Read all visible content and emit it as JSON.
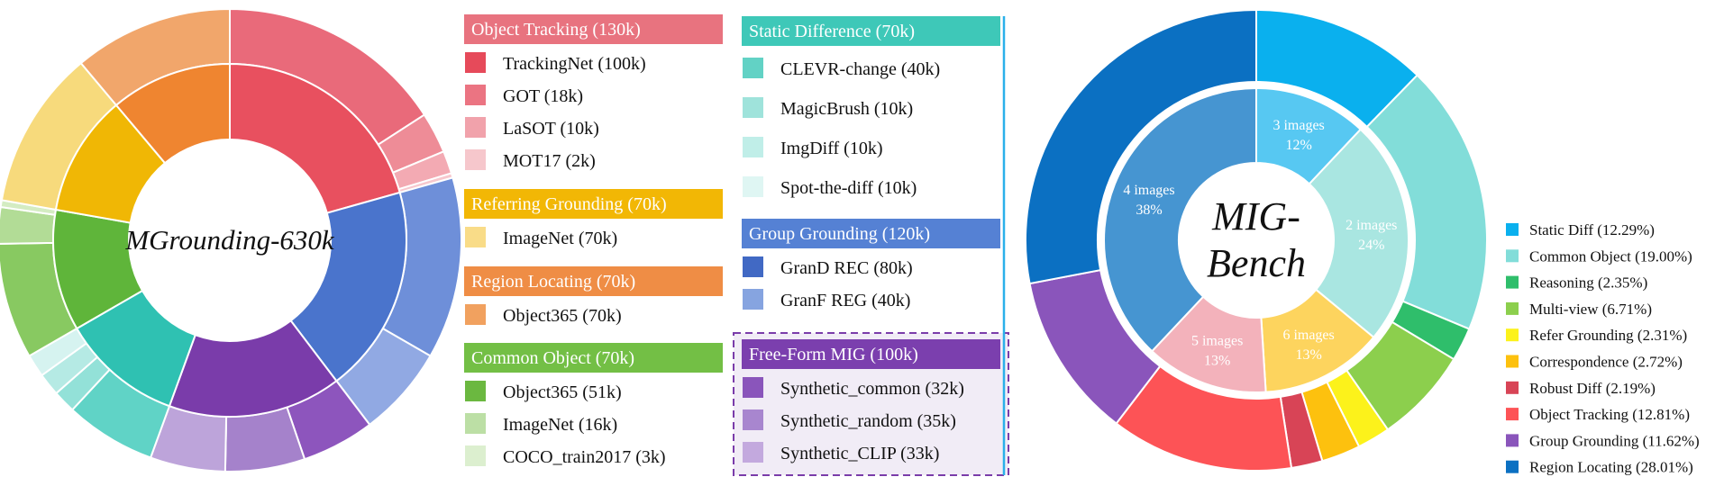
{
  "chart_data": [
    {
      "type": "pie",
      "title": "MGrounding-630k",
      "inner_ring": [
        {
          "label": "Object Tracking",
          "value": 130,
          "color": "#e8505f"
        },
        {
          "label": "Group Grounding",
          "value": 120,
          "color": "#4a74cc"
        },
        {
          "label": "Free-Form MIG",
          "value": 100,
          "color": "#7a3caa"
        },
        {
          "label": "Static Difference",
          "value": 70,
          "color": "#2fc1b2"
        },
        {
          "label": "Common Object",
          "value": 70,
          "color": "#5fb53a"
        },
        {
          "label": "Referring Grounding",
          "value": 70,
          "color": "#f0b705"
        },
        {
          "label": "Region Locating",
          "value": 70,
          "color": "#ef8530"
        }
      ],
      "outer_ring": [
        {
          "label": "TrackingNet",
          "value": 100,
          "color": "#e96a7a"
        },
        {
          "label": "GOT",
          "value": 18,
          "color": "#ee8c97"
        },
        {
          "label": "LaSOT",
          "value": 10,
          "color": "#f3aab3"
        },
        {
          "label": "MOT17",
          "value": 2,
          "color": "#f7c7cd"
        },
        {
          "label": "GranD REC",
          "value": 80,
          "color": "#6e8fd9"
        },
        {
          "label": "GranF REG",
          "value": 40,
          "color": "#91a9e3"
        },
        {
          "label": "Synthetic_common",
          "value": 32,
          "color": "#8d55bd"
        },
        {
          "label": "Synthetic_random",
          "value": 35,
          "color": "#a582cb"
        },
        {
          "label": "Synthetic_CLIP",
          "value": 33,
          "color": "#bda4da"
        },
        {
          "label": "CLEVR-change",
          "value": 40,
          "color": "#60d3c6"
        },
        {
          "label": "MagicBrush",
          "value": 10,
          "color": "#93e1d8"
        },
        {
          "label": "ImgDiff",
          "value": 10,
          "color": "#b5eae4"
        },
        {
          "label": "Spot-the-diff",
          "value": 10,
          "color": "#d6f3f0"
        },
        {
          "label": "Object365",
          "value": 51,
          "color": "#88c961"
        },
        {
          "label": "ImageNet",
          "value": 16,
          "color": "#b2dc96"
        },
        {
          "label": "COCO_train2017",
          "value": 3,
          "color": "#d4ecc2"
        },
        {
          "label": "ImageNet",
          "value": 70,
          "color": "#f7da7c"
        },
        {
          "label": "Object365",
          "value": 70,
          "color": "#f1a66b"
        }
      ],
      "legend": [
        {
          "header": "Object Tracking (130k)",
          "header_color": "#e8737f",
          "items": [
            {
              "label": "TrackingNet (100k)",
              "color": "#e64a5a"
            },
            {
              "label": "GOT (18k)",
              "color": "#eb7482"
            },
            {
              "label": "LaSOT (10k)",
              "color": "#f1a2ab"
            },
            {
              "label": "MOT17 (2k)",
              "color": "#f6c7cc"
            }
          ]
        },
        {
          "header": "Referring Grounding (70k)",
          "header_color": "#f2b705",
          "items": [
            {
              "label": "ImageNet (70k)",
              "color": "#f9dc88"
            }
          ]
        },
        {
          "header": "Region Locating (70k)",
          "header_color": "#ef8d45",
          "items": [
            {
              "label": "Object365 (70k)",
              "color": "#f1a15f"
            }
          ]
        },
        {
          "header": "Common Object (70k)",
          "header_color": "#73bf45",
          "items": [
            {
              "label": "Object365 (51k)",
              "color": "#6bb840"
            },
            {
              "label": "ImageNet (16k)",
              "color": "#bcdfa5"
            },
            {
              "label": "COCO_train2017 (3k)",
              "color": "#dcefcf"
            }
          ]
        },
        {
          "header": "Static Difference (70k)",
          "header_color": "#3ec8b8",
          "items": [
            {
              "label": "CLEVR-change (40k)",
              "color": "#62d2c5"
            },
            {
              "label": "MagicBrush (10k)",
              "color": "#9fe3db"
            },
            {
              "label": "ImgDiff (10k)",
              "color": "#c0eee8"
            },
            {
              "label": "Spot-the-diff (10k)",
              "color": "#dff6f3"
            }
          ]
        },
        {
          "header": "Group Grounding (120k)",
          "header_color": "#5581d4",
          "items": [
            {
              "label": "GranD REC (80k)",
              "color": "#4169c4"
            },
            {
              "label": "GranF REG (40k)",
              "color": "#86a4e0"
            }
          ]
        },
        {
          "header": "Free-Form MIG (100k)",
          "header_color": "#7b3fae",
          "items": [
            {
              "label": "Synthetic_common (32k)",
              "color": "#8a55bb"
            },
            {
              "label": "Synthetic_random (35k)",
              "color": "#a886cf"
            },
            {
              "label": "Synthetic_CLIP (33k)",
              "color": "#c3a9de"
            }
          ]
        }
      ]
    },
    {
      "type": "pie",
      "title": "MIG-Bench",
      "title_lines": [
        "MIG-",
        "Bench"
      ],
      "inner_ring": [
        {
          "label": "3 images",
          "percent": "12%",
          "value": 12,
          "color": "#57c8f2"
        },
        {
          "label": "2 images",
          "percent": "24%",
          "value": 24,
          "color": "#a9e6e1"
        },
        {
          "label": "6 images",
          "percent": "13%",
          "value": 13,
          "color": "#fdd45e"
        },
        {
          "label": "5 images",
          "percent": "13%",
          "value": 13,
          "color": "#f3b2bb"
        },
        {
          "label": "4 images",
          "percent": "38%",
          "value": 38,
          "color": "#4695d1"
        }
      ],
      "outer_ring": [
        {
          "label": "Static Diff (12.29%)",
          "value": 12.29,
          "color": "#0ab0ee"
        },
        {
          "label": "Common Object (19.00%)",
          "value": 19.0,
          "color": "#82ddd9"
        },
        {
          "label": "Reasoning (2.35%)",
          "value": 2.35,
          "color": "#2fbe6b"
        },
        {
          "label": "Multi-view (6.71%)",
          "value": 6.71,
          "color": "#8ccf4d"
        },
        {
          "label": "Refer Grounding (2.31%)",
          "value": 2.31,
          "color": "#fcf21b"
        },
        {
          "label": "Correspondence (2.72%)",
          "value": 2.72,
          "color": "#fdc10e"
        },
        {
          "label": "Robust Diff (2.19%)",
          "value": 2.19,
          "color": "#d84456"
        },
        {
          "label": "Object Tracking (12.81%)",
          "value": 12.81,
          "color": "#fd5356"
        },
        {
          "label": "Group Grounding (11.62%)",
          "value": 11.62,
          "color": "#8a55bb"
        },
        {
          "label": "Region Locating (28.01%)",
          "value": 28.01,
          "color": "#0b70c2"
        }
      ]
    }
  ]
}
